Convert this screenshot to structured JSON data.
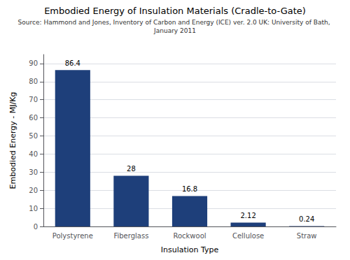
{
  "chart_data": {
    "type": "bar",
    "title": "Embodied Energy of Insulation Materials (Cradle-to-Gate)",
    "subtitle": "Source: Hammond and Jones, Inventory of Carbon and Energy (ICE) ver. 2.0 UK: University of Bath, January 2011",
    "xlabel": "Insulation Type",
    "ylabel": "Embodied Energy - MJ/Kg",
    "categories": [
      "Polystyrene",
      "Fiberglass",
      "Rockwool",
      "Cellulose",
      "Straw"
    ],
    "values": [
      86.4,
      28,
      16.8,
      2.12,
      0.24
    ],
    "color": "#1e3f7a",
    "ylim": [
      0,
      95
    ],
    "yticks": [
      0,
      10,
      20,
      30,
      40,
      50,
      60,
      70,
      80,
      90
    ],
    "grid": true,
    "data_labels": true
  }
}
